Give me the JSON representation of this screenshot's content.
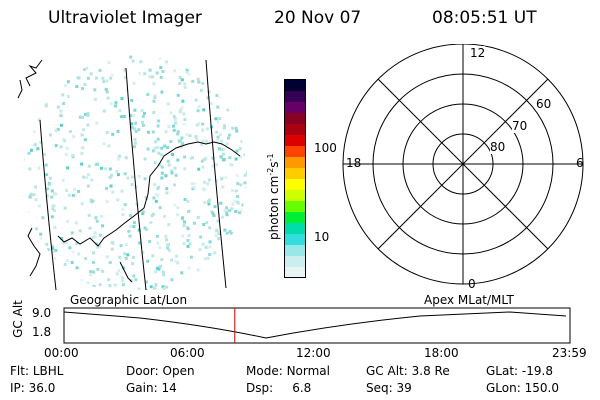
{
  "header": {
    "instrument": "Ultraviolet Imager",
    "date": "20 Nov 07",
    "time": "08:05:51 UT"
  },
  "colorbar": {
    "label_main": "photon cm",
    "label_exp1": "-2",
    "label_mid": "s",
    "label_exp2": "-1",
    "ticks": [
      {
        "label": "100",
        "value": 100
      },
      {
        "label": "10",
        "value": 10
      }
    ],
    "colors": [
      "#000033",
      "#330055",
      "#660066",
      "#880022",
      "#aa0011",
      "#dd0000",
      "#ff4400",
      "#ff9900",
      "#ffcc00",
      "#ffff00",
      "#ccff00",
      "#66ff00",
      "#00ee33",
      "#00ddaa",
      "#33dddd",
      "#99e8e8",
      "#cceeee",
      "#e8f4f4"
    ]
  },
  "polar": {
    "mlt_labels": {
      "top": "12",
      "left": "18",
      "right": "6",
      "bottom": "0"
    },
    "lat_labels": [
      "60",
      "70",
      "80"
    ]
  },
  "orbit": {
    "yaxis_label": "GC Alt",
    "y_ticks": [
      "9.0",
      "1.8"
    ],
    "left_caption": "Geographic Lat/Lon",
    "right_caption": "Apex  MLat/MLT",
    "x_ticks": [
      "00:00",
      "06:00",
      "12:00",
      "18:00",
      "23:59"
    ],
    "current_time_fraction": 0.3375,
    "current_marker_color": "#cc0000"
  },
  "status": {
    "row1": [
      {
        "key": "Flt:",
        "val": "LBHL"
      },
      {
        "key": "Door:",
        "val": "Open"
      },
      {
        "key": "Mode:",
        "val": "Normal"
      },
      {
        "key": "GC Alt:",
        "val": "3.8 Re"
      },
      {
        "key": "GLat:",
        "val": "-19.8"
      }
    ],
    "row2": [
      {
        "key": "IP:",
        "val": "36.0"
      },
      {
        "key": "Gain:",
        "val": "14"
      },
      {
        "key": "Dsp:",
        "val": "6.8"
      },
      {
        "key": "Seq:",
        "val": "39"
      },
      {
        "key": "GLon:",
        "val": "150.0"
      }
    ]
  }
}
